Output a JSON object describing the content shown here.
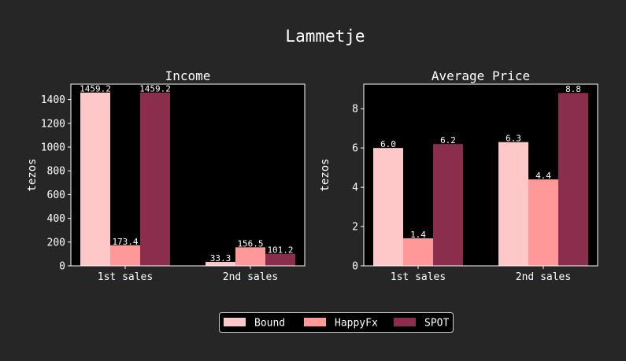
{
  "figure": {
    "title": "Lammetje",
    "background": "#262626",
    "axes_background": "#000000",
    "text_color": "#ffffff"
  },
  "legend": {
    "placement": "bottom-center",
    "entries": [
      "Bound",
      "HappyFx",
      "SPOT"
    ],
    "colors": [
      "#ffc8c8",
      "#ff9999",
      "#8b2e4e"
    ]
  },
  "chart_data": [
    {
      "type": "bar",
      "title": "Income",
      "ylabel": "tezos",
      "xlabel": "",
      "categories": [
        "1st sales",
        "2nd sales"
      ],
      "ylim": [
        0,
        1530
      ],
      "yticks": [
        0,
        200,
        400,
        600,
        800,
        1000,
        1200,
        1400
      ],
      "grid": false,
      "series": [
        {
          "name": "Bound",
          "values": [
            1459.2,
            33.3
          ],
          "labels": [
            "1459.2",
            "33.3"
          ],
          "color": "#ffc8c8"
        },
        {
          "name": "HappyFx",
          "values": [
            173.4,
            156.5
          ],
          "labels": [
            "173.4",
            "156.5"
          ],
          "color": "#ff9999"
        },
        {
          "name": "SPOT",
          "values": [
            1459.2,
            101.2
          ],
          "labels": [
            "1459.2",
            "101.2"
          ],
          "color": "#8b2e4e"
        }
      ]
    },
    {
      "type": "bar",
      "title": "Average Price",
      "ylabel": "tezos",
      "xlabel": "",
      "categories": [
        "1st sales",
        "2nd sales"
      ],
      "ylim": [
        0,
        9.25
      ],
      "yticks": [
        0,
        2,
        4,
        6,
        8
      ],
      "grid": false,
      "series": [
        {
          "name": "Bound",
          "values": [
            6.0,
            6.3
          ],
          "labels": [
            "6.0",
            "6.3"
          ],
          "color": "#ffc8c8"
        },
        {
          "name": "HappyFx",
          "values": [
            1.4,
            4.4
          ],
          "labels": [
            "1.4",
            "4.4"
          ],
          "color": "#ff9999"
        },
        {
          "name": "SPOT",
          "values": [
            6.2,
            8.8
          ],
          "labels": [
            "6.2",
            "8.8"
          ],
          "color": "#8b2e4e"
        }
      ]
    }
  ]
}
